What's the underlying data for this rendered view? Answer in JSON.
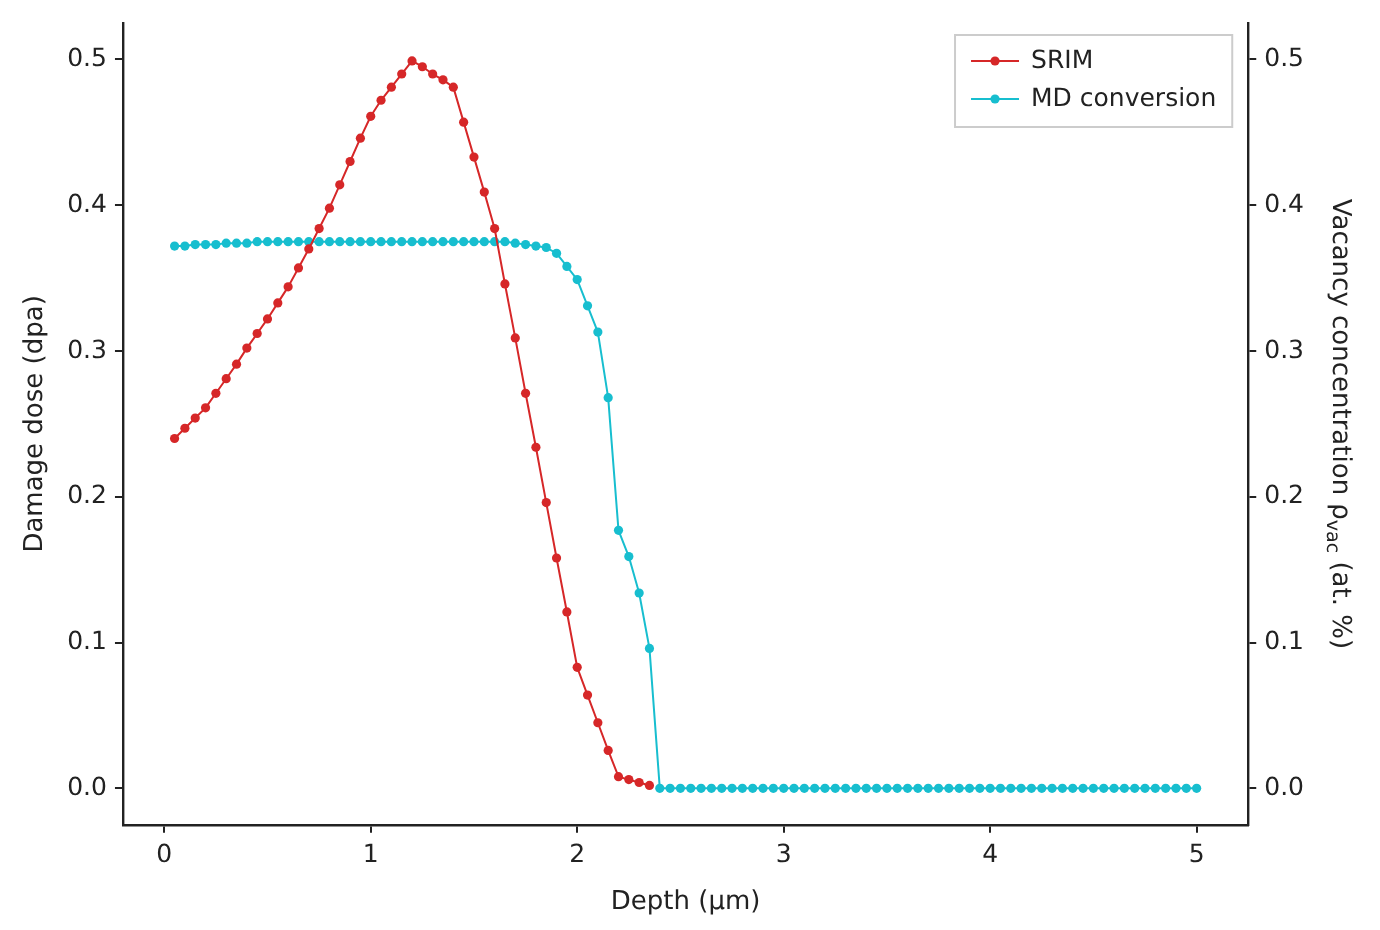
{
  "chart_data": {
    "type": "line",
    "xlabel": "Depth (µm)",
    "ylabel": "Damage dose (dpa)",
    "y2label": "Vacancy concentration ρ$_{vac}$ (at. %)",
    "xlim": [
      -0.2,
      5.25
    ],
    "xticks": [
      0,
      1,
      2,
      3,
      4,
      5
    ],
    "ylim": [
      -0.025,
      0.525
    ],
    "yticks": [
      {
        "value": 0,
        "label": "0.0"
      },
      0.1,
      0.2,
      0.3,
      0.4,
      0.5
    ],
    "y2lim": [
      -0.025,
      0.525
    ],
    "y2ticks": [
      {
        "value": 0,
        "label": "0.0"
      },
      0.1,
      0.2,
      0.3,
      0.4,
      0.5
    ],
    "legend": "top right",
    "marker": "circle",
    "grid": false,
    "series": [
      {
        "name": "SRIM",
        "color": "#d62728",
        "x": [
          0.05,
          0.1,
          0.15,
          0.2,
          0.25,
          0.3,
          0.35,
          0.4,
          0.45,
          0.5,
          0.55,
          0.6,
          0.65,
          0.7,
          0.75,
          0.8,
          0.85,
          0.9,
          0.95,
          1.0,
          1.05,
          1.1,
          1.15,
          1.2,
          1.25,
          1.3,
          1.35,
          1.4,
          1.45,
          1.5,
          1.55,
          1.6,
          1.65,
          1.7,
          1.75,
          1.8,
          1.85,
          1.9,
          1.95,
          2.0,
          2.05,
          2.1,
          2.15,
          2.2,
          2.25,
          2.3,
          2.35
        ],
        "values": [
          0.24,
          0.247,
          0.254,
          0.261,
          0.271,
          0.281,
          0.291,
          0.302,
          0.312,
          0.322,
          0.333,
          0.344,
          0.357,
          0.37,
          0.384,
          0.398,
          0.414,
          0.43,
          0.446,
          0.461,
          0.472,
          0.481,
          0.49,
          0.499,
          0.495,
          0.49,
          0.486,
          0.481,
          0.457,
          0.433,
          0.409,
          0.384,
          0.346,
          0.309,
          0.271,
          0.234,
          0.196,
          0.158,
          0.121,
          0.083,
          0.064,
          0.045,
          0.026,
          0.008,
          0.006,
          0.004,
          0.002
        ]
      },
      {
        "name": "MD conversion",
        "color": "#17becf",
        "axis": "y2",
        "x": [
          0.05,
          0.1,
          0.15,
          0.2,
          0.25,
          0.3,
          0.35,
          0.4,
          0.45,
          0.5,
          0.55,
          0.6,
          0.65,
          0.7,
          0.75,
          0.8,
          0.85,
          0.9,
          0.95,
          1.0,
          1.05,
          1.1,
          1.15,
          1.2,
          1.25,
          1.3,
          1.35,
          1.4,
          1.45,
          1.5,
          1.55,
          1.6,
          1.65,
          1.7,
          1.75,
          1.8,
          1.85,
          1.9,
          1.95,
          2.0,
          2.05,
          2.1,
          2.15,
          2.2,
          2.25,
          2.3,
          2.35,
          2.4,
          2.45,
          2.5,
          2.55,
          2.6,
          2.65,
          2.7,
          2.75,
          2.8,
          2.85,
          2.9,
          2.95,
          3.0,
          3.05,
          3.1,
          3.15,
          3.2,
          3.25,
          3.3,
          3.35,
          3.4,
          3.45,
          3.5,
          3.55,
          3.6,
          3.65,
          3.7,
          3.75,
          3.8,
          3.85,
          3.9,
          3.95,
          4.0,
          4.05,
          4.1,
          4.15,
          4.2,
          4.25,
          4.3,
          4.35,
          4.4,
          4.45,
          4.5,
          4.55,
          4.6,
          4.65,
          4.7,
          4.75,
          4.8,
          4.85,
          4.9,
          4.95,
          5.0
        ],
        "values": [
          0.372,
          0.372,
          0.373,
          0.373,
          0.373,
          0.374,
          0.374,
          0.374,
          0.375,
          0.375,
          0.375,
          0.375,
          0.375,
          0.375,
          0.375,
          0.375,
          0.375,
          0.375,
          0.375,
          0.375,
          0.375,
          0.375,
          0.375,
          0.375,
          0.375,
          0.375,
          0.375,
          0.375,
          0.375,
          0.375,
          0.375,
          0.375,
          0.375,
          0.374,
          0.373,
          0.372,
          0.371,
          0.367,
          0.358,
          0.349,
          0.331,
          0.313,
          0.268,
          0.177,
          0.159,
          0.134,
          0.096,
          0,
          0,
          0,
          0,
          0,
          0,
          0,
          0,
          0,
          0,
          0,
          0,
          0,
          0,
          0,
          0,
          0,
          0,
          0,
          0,
          0,
          0,
          0,
          0,
          0,
          0,
          0,
          0,
          0,
          0,
          0,
          0,
          0,
          0,
          0,
          0,
          0,
          0,
          0,
          0,
          0,
          0,
          0,
          0,
          0,
          0,
          0,
          0,
          0,
          0,
          0,
          0,
          0
        ]
      }
    ]
  }
}
